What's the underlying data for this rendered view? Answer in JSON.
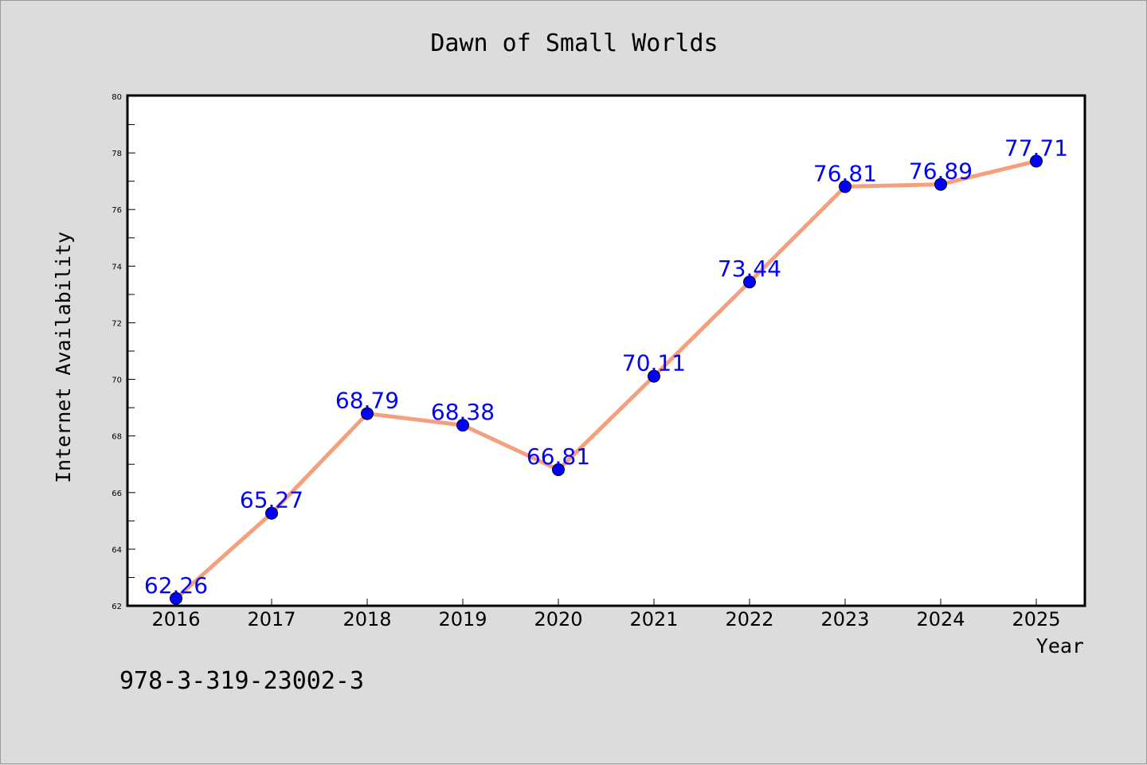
{
  "chart_data": {
    "type": "line",
    "title": "Dawn of Small Worlds",
    "xlabel": "Year",
    "ylabel": "Internet Availability",
    "categories": [
      "2016",
      "2017",
      "2018",
      "2019",
      "2020",
      "2021",
      "2022",
      "2023",
      "2024",
      "2025"
    ],
    "series": [
      {
        "values": [
          62.26,
          65.27,
          68.79,
          68.38,
          66.81,
          70.11,
          73.44,
          76.81,
          76.89,
          77.71
        ],
        "data_labels": [
          "62.26",
          "65.27",
          "68.79",
          "68.38",
          "66.81",
          "70.11",
          "73.44",
          "76.81",
          "76.89",
          "77.71"
        ]
      }
    ],
    "ylim": [
      62,
      80
    ],
    "yticks": [
      "62",
      "64",
      "66",
      "68",
      "70",
      "72",
      "74",
      "76",
      "78",
      "80"
    ],
    "grid": false,
    "legend": "none",
    "colors": {
      "line": "#f4a07e",
      "marker": "#0000ff",
      "data_label": "#0000ff",
      "background": "#dcdcdc",
      "plot_background": "#ffffff"
    }
  },
  "annotation": "978-3-319-23002-3"
}
